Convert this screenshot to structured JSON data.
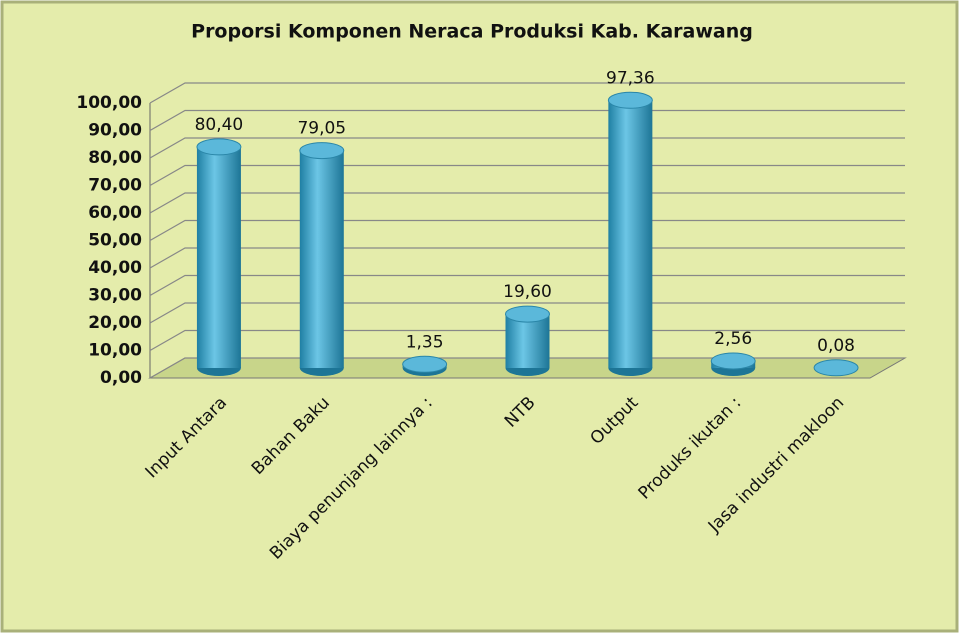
{
  "chart_data": {
    "type": "bar3d",
    "title": "Proporsi Komponen Neraca Produksi Kab. Karawang",
    "categories": [
      "Input Antara",
      "Bahan Baku",
      "Biaya penunjang lainnya :",
      "NTB",
      "Output",
      "Produks ikutan :",
      "Jasa industri makloon"
    ],
    "values": [
      80.4,
      79.05,
      1.35,
      19.6,
      97.36,
      2.56,
      0.08
    ],
    "value_labels": [
      "80,40",
      "79,05",
      "1,35",
      "19,60",
      "97,36",
      "2,56",
      "0,08"
    ],
    "color": "#3ba3c8",
    "ylim": [
      0,
      100
    ],
    "yticks": [
      {
        "value": 0,
        "label": "0,00"
      },
      {
        "value": 10,
        "label": "10,00"
      },
      {
        "value": 20,
        "label": "20,00"
      },
      {
        "value": 30,
        "label": "30,00"
      },
      {
        "value": 40,
        "label": "40,00"
      },
      {
        "value": 50,
        "label": "50,00"
      },
      {
        "value": 60,
        "label": "60,00"
      },
      {
        "value": 70,
        "label": "70,00"
      },
      {
        "value": 80,
        "label": "80,00"
      },
      {
        "value": 90,
        "label": "90,00"
      },
      {
        "value": 100,
        "label": "100,00"
      }
    ],
    "grid": true
  }
}
